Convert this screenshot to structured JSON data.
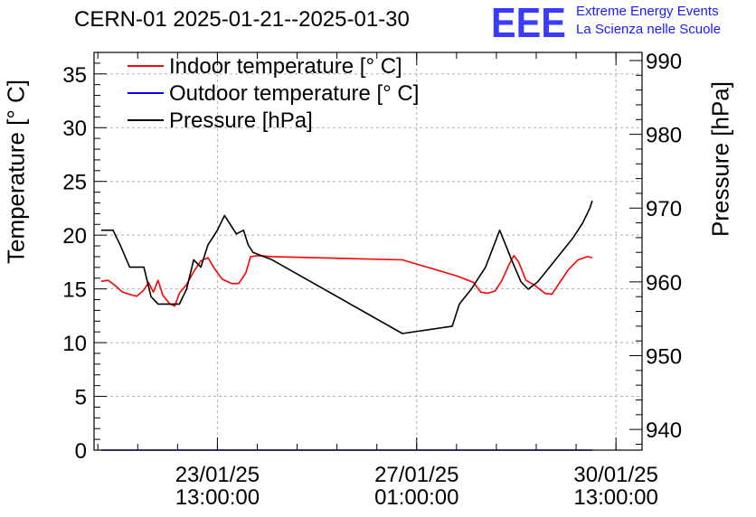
{
  "chart_data": {
    "type": "line",
    "title": "CERN-01 2025-01-21--2025-01-30",
    "logo": {
      "text": "EEE",
      "line1": "Extreme Energy Events",
      "line2": "La Scienza nelle Scuole"
    },
    "ylabel": "Temperature [° C]",
    "ylabel_right": "Pressure [hPa]",
    "ylim": [
      0,
      37
    ],
    "ylim_right": [
      937.2,
      991.1
    ],
    "xlim": [
      "2025-01-21 09:00",
      "2025-01-31 00:00"
    ],
    "yticks": [
      "0",
      "5",
      "10",
      "15",
      "20",
      "25",
      "30",
      "35"
    ],
    "yticks_right": [
      "940",
      "950",
      "960",
      "970",
      "980",
      "990"
    ],
    "xticks": [
      {
        "date": "23/01/25",
        "time": "13:00:00",
        "x": "2025-01-23 13:00"
      },
      {
        "date": "27/01/25",
        "time": "01:00:00",
        "x": "2025-01-27 01:00"
      },
      {
        "date": "30/01/25",
        "time": "13:00:00",
        "x": "2025-01-30 13:00"
      }
    ],
    "grid": true,
    "legend_position": "top-left",
    "series": [
      {
        "name": "Indoor temperature [° C]",
        "color": "#ff0000",
        "axis": "left",
        "points": [
          [
            "2025-01-21 12:00",
            15.7
          ],
          [
            "2025-01-21 15:00",
            15.8
          ],
          [
            "2025-01-21 18:00",
            15.3
          ],
          [
            "2025-01-21 21:00",
            14.7
          ],
          [
            "2025-01-22 00:00",
            14.5
          ],
          [
            "2025-01-22 03:00",
            14.3
          ],
          [
            "2025-01-22 06:00",
            14.9
          ],
          [
            "2025-01-22 08:00",
            15.6
          ],
          [
            "2025-01-22 10:00",
            14.7
          ],
          [
            "2025-01-22 12:00",
            15.8
          ],
          [
            "2025-01-22 14:00",
            14.4
          ],
          [
            "2025-01-22 17:00",
            13.6
          ],
          [
            "2025-01-22 19:00",
            13.4
          ],
          [
            "2025-01-22 21:00",
            14.6
          ],
          [
            "2025-01-23 00:00",
            15.4
          ],
          [
            "2025-01-23 03:00",
            16.6
          ],
          [
            "2025-01-23 06:00",
            17.6
          ],
          [
            "2025-01-23 09:00",
            17.9
          ],
          [
            "2025-01-23 12:00",
            16.8
          ],
          [
            "2025-01-23 15:00",
            15.9
          ],
          [
            "2025-01-23 19:00",
            15.5
          ],
          [
            "2025-01-23 22:00",
            15.5
          ],
          [
            "2025-01-24 01:00",
            16.5
          ],
          [
            "2025-01-24 03:00",
            18.0
          ],
          [
            "2025-01-24 06:00",
            18.1
          ],
          [
            "2025-01-24 12:00",
            18.0
          ],
          [
            "2025-01-26 19:00",
            17.7
          ],
          [
            "2025-01-27 18:00",
            16.2
          ],
          [
            "2025-01-28 01:00",
            15.6
          ],
          [
            "2025-01-28 04:00",
            14.7
          ],
          [
            "2025-01-28 07:00",
            14.6
          ],
          [
            "2025-01-28 10:00",
            14.8
          ],
          [
            "2025-01-28 13:00",
            15.8
          ],
          [
            "2025-01-28 16:00",
            17.3
          ],
          [
            "2025-01-28 18:00",
            18.1
          ],
          [
            "2025-01-28 20:00",
            17.5
          ],
          [
            "2025-01-28 23:00",
            15.8
          ],
          [
            "2025-01-29 03:00",
            15.3
          ],
          [
            "2025-01-29 07:00",
            14.6
          ],
          [
            "2025-01-29 10:00",
            14.5
          ],
          [
            "2025-01-29 13:00",
            15.5
          ],
          [
            "2025-01-29 17:00",
            16.8
          ],
          [
            "2025-01-29 21:00",
            17.7
          ],
          [
            "2025-01-30 01:00",
            18.0
          ],
          [
            "2025-01-30 03:00",
            17.9
          ]
        ]
      },
      {
        "name": "Outdoor temperature [° C]",
        "color": "#0000ff",
        "axis": "left",
        "points": [
          [
            "2025-01-21 12:00",
            0
          ],
          [
            "2025-01-30 03:00",
            0
          ]
        ]
      },
      {
        "name": "Pressure [hPa]",
        "color": "#000000",
        "axis": "right",
        "points": [
          [
            "2025-01-21 12:00",
            967.0
          ],
          [
            "2025-01-21 17:00",
            967.0
          ],
          [
            "2025-01-21 20:00",
            965.0
          ],
          [
            "2025-01-22 00:00",
            962.0
          ],
          [
            "2025-01-22 06:00",
            962.0
          ],
          [
            "2025-01-22 09:00",
            958.0
          ],
          [
            "2025-01-22 12:00",
            957.0
          ],
          [
            "2025-01-22 18:00",
            957.0
          ],
          [
            "2025-01-22 21:00",
            957.0
          ],
          [
            "2025-01-23 00:00",
            959.0
          ],
          [
            "2025-01-23 03:00",
            963.0
          ],
          [
            "2025-01-23 06:00",
            962.0
          ],
          [
            "2025-01-23 09:00",
            965.0
          ],
          [
            "2025-01-23 13:00",
            967.0
          ],
          [
            "2025-01-23 16:00",
            969.0
          ],
          [
            "2025-01-23 18:00",
            968.0
          ],
          [
            "2025-01-23 21:00",
            966.5
          ],
          [
            "2025-01-24 00:00",
            967.0
          ],
          [
            "2025-01-24 02:00",
            965.0
          ],
          [
            "2025-01-24 04:00",
            964.0
          ],
          [
            "2025-01-24 12:00",
            963.0
          ],
          [
            "2025-01-26 19:00",
            953.0
          ],
          [
            "2025-01-27 16:00",
            954.0
          ],
          [
            "2025-01-27 19:00",
            957.0
          ],
          [
            "2025-01-28 00:00",
            959.0
          ],
          [
            "2025-01-28 06:00",
            962.0
          ],
          [
            "2025-01-28 12:00",
            967.0
          ],
          [
            "2025-01-28 17:00",
            963.0
          ],
          [
            "2025-01-28 21:00",
            960.0
          ],
          [
            "2025-01-29 00:00",
            959.0
          ],
          [
            "2025-01-29 04:00",
            960.0
          ],
          [
            "2025-01-29 09:00",
            962.0
          ],
          [
            "2025-01-29 14:00",
            964.0
          ],
          [
            "2025-01-29 19:00",
            966.0
          ],
          [
            "2025-01-29 23:00",
            968.0
          ],
          [
            "2025-01-30 02:00",
            970.0
          ],
          [
            "2025-01-30 03:00",
            971.0
          ]
        ]
      }
    ]
  }
}
